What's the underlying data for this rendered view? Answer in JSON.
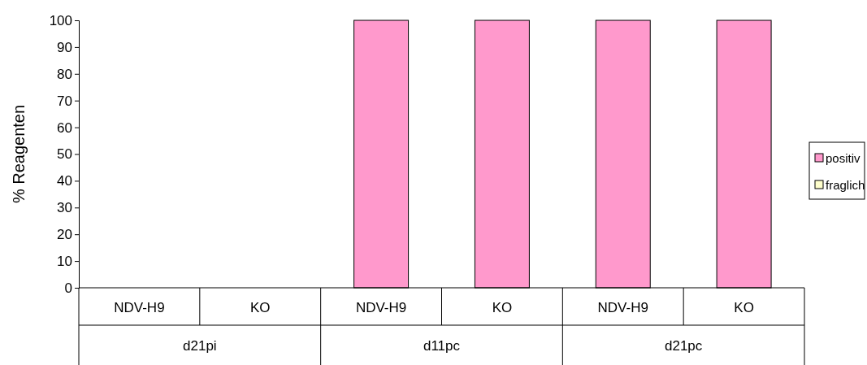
{
  "chart_data": {
    "type": "bar",
    "ylabel": "% Reagenten",
    "categories": [
      "NDV-H9",
      "KO",
      "NDV-H9",
      "KO",
      "NDV-H9",
      "KO"
    ],
    "series": [
      {
        "name": "positiv",
        "color": "#ff99cc",
        "values": [
          0,
          0,
          100,
          100,
          100,
          100
        ]
      },
      {
        "name": "fraglich",
        "color": "#ffffcc",
        "values": [
          0,
          0,
          0,
          0,
          0,
          0
        ]
      }
    ],
    "stacked": true,
    "ylim": [
      0,
      100
    ],
    "yticks": [
      0,
      10,
      20,
      30,
      40,
      50,
      60,
      70,
      80,
      90,
      100
    ],
    "legend": "right",
    "grid": false,
    "annotations": [
      "d21pi",
      "d11pc",
      "d21pc"
    ]
  }
}
